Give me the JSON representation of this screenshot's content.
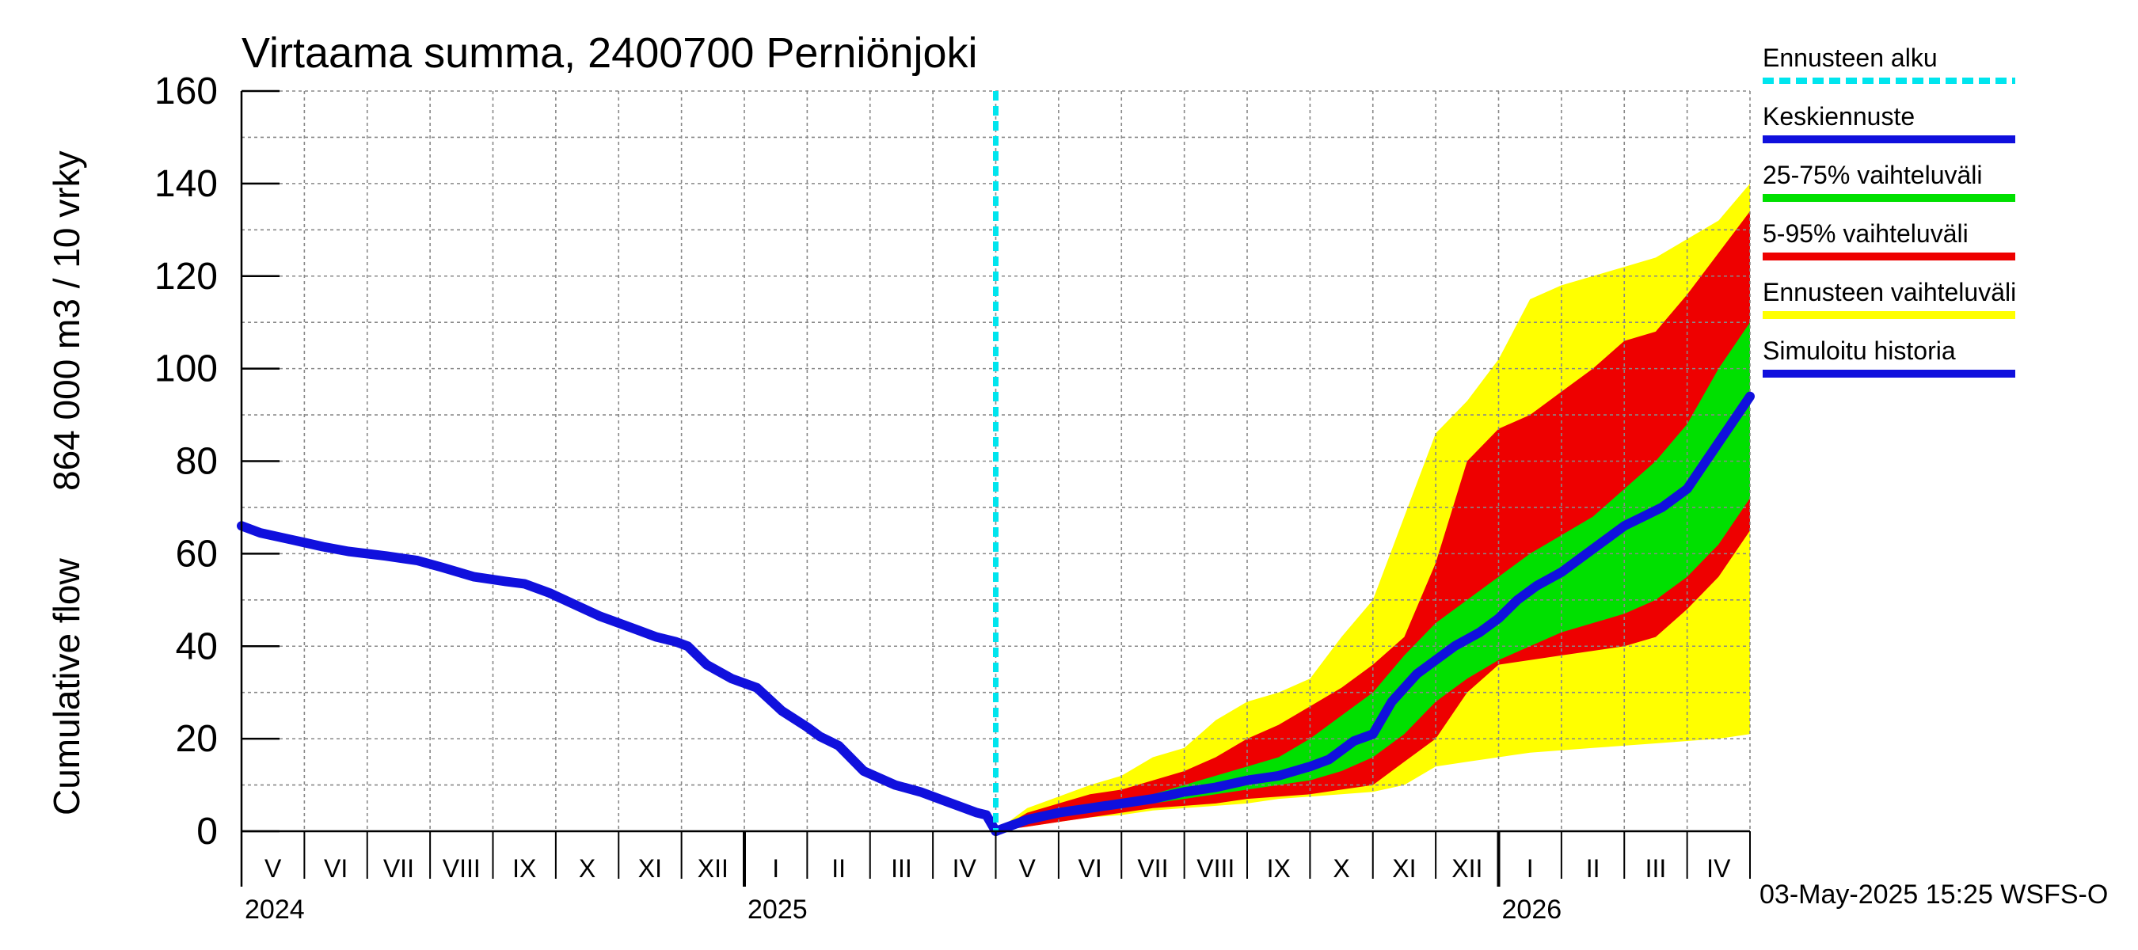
{
  "chart_data": {
    "type": "area",
    "title": "Virtaama summa, 2400700 Perniönjoki",
    "ylabel": [
      "Cumulative flow",
      "864 000 m3 / 10 vrky"
    ],
    "ylim": [
      0,
      160
    ],
    "yticks": [
      0,
      20,
      40,
      60,
      80,
      100,
      120,
      140,
      160
    ],
    "x_unit": "month index from 2024-05-01",
    "xlim": [
      0,
      24
    ],
    "months": [
      "V",
      "VI",
      "VII",
      "VIII",
      "IX",
      "X",
      "XI",
      "XII",
      "I",
      "II",
      "III",
      "IV",
      "V",
      "VI",
      "VII",
      "VIII",
      "IX",
      "X",
      "XI",
      "XII",
      "I",
      "II",
      "III",
      "IV"
    ],
    "years": [
      {
        "label": "2024",
        "at": 0
      },
      {
        "label": "2025",
        "at": 8
      },
      {
        "label": "2026",
        "at": 20
      }
    ],
    "grid": true,
    "forecast_start": 12,
    "legend": {
      "placement": "right",
      "entries": [
        {
          "label": "Ennusteen alku",
          "color": "#00e5ee",
          "style": "dashed"
        },
        {
          "label": "Keskiennuste",
          "color": "#1010dd",
          "style": "solid"
        },
        {
          "label": "25-75% vaihteluväli",
          "color": "#00e000",
          "style": "solid"
        },
        {
          "label": "5-95% vaihteluväli",
          "color": "#ee0000",
          "style": "solid"
        },
        {
          "label": "Ennusteen vaihteluväli",
          "color": "#ffff00",
          "style": "solid"
        },
        {
          "label": "Simuloitu historia",
          "color": "#1010dd",
          "style": "solid"
        }
      ]
    },
    "series": [
      {
        "name": "Simuloitu historia",
        "color": "#1010dd",
        "x": [
          0,
          0.3,
          0.8,
          1.3,
          1.7,
          2.3,
          2.8,
          3.2,
          3.7,
          4.2,
          4.5,
          4.9,
          5.3,
          5.7,
          6.0,
          6.3,
          6.6,
          6.9,
          7.1,
          7.4,
          7.8,
          8.2,
          8.6,
          9.0,
          9.2,
          9.5,
          9.9,
          10.4,
          10.8,
          11.2,
          11.5,
          11.7,
          11.85,
          12.0
        ],
        "y": [
          66,
          64.5,
          63,
          61.5,
          60.5,
          59.5,
          58.5,
          57,
          55,
          54,
          53.5,
          51.5,
          49,
          46.5,
          45,
          43.5,
          42,
          41,
          40,
          36,
          33,
          31,
          26,
          22.5,
          20.5,
          18.5,
          13,
          10,
          8.5,
          6.5,
          5,
          4,
          3.5,
          0
        ]
      },
      {
        "name": "Keskiennuste",
        "color": "#1010dd",
        "x": [
          12.0,
          12.5,
          13.0,
          13.5,
          14.0,
          14.5,
          15.0,
          15.5,
          16.0,
          16.5,
          17.0,
          17.3,
          17.7,
          18.0,
          18.3,
          18.7,
          19.0,
          19.3,
          19.7,
          20.0,
          20.3,
          20.6,
          21.0,
          21.3,
          21.6,
          22.0,
          22.3,
          22.6,
          23.0,
          23.3,
          23.6,
          24.0
        ],
        "y": [
          0,
          2.5,
          4,
          5,
          6,
          7,
          8.5,
          9.5,
          11,
          12,
          14,
          15.5,
          19.5,
          21,
          28,
          34,
          37,
          40,
          43,
          46,
          50,
          53,
          56,
          59,
          62,
          66,
          68,
          70,
          74,
          80,
          86,
          94
        ]
      },
      {
        "name": "Ennusteen vaihteluväli",
        "color": "#ffff00",
        "x": [
          12.0,
          12.5,
          13.0,
          13.5,
          14.0,
          14.5,
          15.0,
          15.5,
          16.0,
          16.5,
          17.0,
          17.5,
          18.0,
          18.5,
          19.0,
          19.5,
          20.0,
          20.5,
          21.0,
          21.5,
          22.0,
          22.5,
          23.0,
          23.5,
          24.0
        ],
        "upper": [
          0,
          5,
          7.5,
          10,
          12,
          16,
          18,
          24,
          28,
          30,
          33,
          42,
          50,
          68,
          86,
          93,
          102,
          115,
          118,
          120,
          122,
          124,
          128,
          132,
          140
        ],
        "lower": [
          0,
          1,
          2,
          3,
          3.5,
          4.5,
          5,
          5.5,
          6,
          7,
          7.5,
          8,
          8.5,
          10,
          14,
          15,
          16,
          17,
          17.5,
          18,
          18.5,
          19,
          19.5,
          20,
          21
        ]
      },
      {
        "name": "5-95% vaihteluväli",
        "color": "#ee0000",
        "x": [
          12.0,
          12.5,
          13.0,
          13.5,
          14.0,
          14.5,
          15.0,
          15.5,
          16.0,
          16.5,
          17.0,
          17.5,
          18.0,
          18.5,
          19.0,
          19.5,
          20.0,
          20.5,
          21.0,
          21.5,
          22.0,
          22.5,
          23.0,
          23.5,
          24.0
        ],
        "upper": [
          0,
          4,
          6,
          8,
          9,
          11,
          13,
          16,
          20,
          23,
          27,
          31,
          36,
          42,
          58,
          80,
          87,
          90,
          95,
          100,
          106,
          108,
          116,
          125,
          134
        ],
        "lower": [
          0,
          1,
          2,
          3,
          4,
          5,
          5.5,
          6,
          7,
          7.5,
          8,
          9,
          10,
          15,
          20,
          30,
          36,
          37,
          38,
          39,
          40,
          42,
          48,
          55,
          65
        ]
      },
      {
        "name": "25-75% vaihteluväli",
        "color": "#00e000",
        "x": [
          12.0,
          12.5,
          13.0,
          13.5,
          14.0,
          14.5,
          15.0,
          15.5,
          16.0,
          16.5,
          17.0,
          17.5,
          18.0,
          18.5,
          19.0,
          19.5,
          20.0,
          20.5,
          21.0,
          21.5,
          22.0,
          22.5,
          23.0,
          23.5,
          24.0
        ],
        "upper": [
          0,
          3,
          5,
          6,
          7,
          8,
          10,
          12,
          14,
          16,
          20,
          25,
          30,
          38,
          45,
          50,
          55,
          60,
          64,
          68,
          74,
          80,
          88,
          100,
          110
        ],
        "lower": [
          0,
          2,
          3.5,
          4.5,
          5,
          6,
          7,
          8,
          9,
          10,
          11,
          13,
          16,
          21,
          28,
          33,
          37,
          40,
          43,
          45,
          47,
          50,
          55,
          62,
          72
        ]
      }
    ]
  },
  "footer": {
    "timestamp": "03-May-2025 15:25 WSFS-O"
  }
}
